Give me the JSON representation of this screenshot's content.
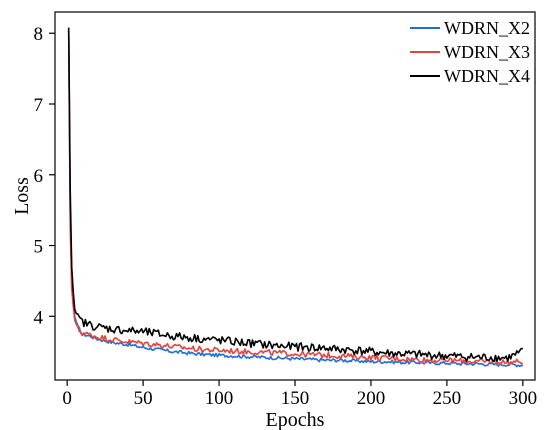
{
  "chart_data": {
    "type": "line",
    "title": "",
    "xlabel": "Epochs",
    "ylabel": "Loss",
    "xlim": [
      -8,
      308
    ],
    "ylim": [
      3.1,
      8.3
    ],
    "xticks": [
      0,
      50,
      100,
      150,
      200,
      250,
      300
    ],
    "yticks": [
      4,
      5,
      6,
      7,
      8
    ],
    "grid": false,
    "legend_position": "top-right",
    "series": [
      {
        "name": "WDRN_X2",
        "color": "#1f6fd6",
        "x": [
          1,
          2,
          3,
          4,
          5,
          7,
          10,
          15,
          20,
          30,
          40,
          50,
          60,
          70,
          80,
          90,
          100,
          110,
          120,
          130,
          140,
          150,
          160,
          170,
          180,
          190,
          200,
          210,
          220,
          230,
          240,
          250,
          260,
          270,
          280,
          290,
          300
        ],
        "y": [
          8.05,
          5.5,
          4.6,
          4.3,
          4.0,
          3.85,
          3.75,
          3.72,
          3.68,
          3.63,
          3.6,
          3.56,
          3.53,
          3.5,
          3.48,
          3.46,
          3.45,
          3.44,
          3.43,
          3.42,
          3.41,
          3.4,
          3.39,
          3.38,
          3.38,
          3.37,
          3.36,
          3.36,
          3.35,
          3.35,
          3.34,
          3.34,
          3.33,
          3.33,
          3.32,
          3.32,
          3.31
        ]
      },
      {
        "name": "WDRN_X3",
        "color": "#e8403a",
        "x": [
          1,
          2,
          3,
          4,
          5,
          7,
          10,
          15,
          20,
          30,
          40,
          50,
          60,
          70,
          80,
          90,
          100,
          110,
          120,
          130,
          140,
          150,
          160,
          170,
          180,
          190,
          200,
          210,
          220,
          230,
          240,
          250,
          260,
          270,
          280,
          290,
          300
        ],
        "y": [
          8.05,
          5.3,
          4.4,
          4.15,
          3.95,
          3.82,
          3.76,
          3.74,
          3.71,
          3.67,
          3.64,
          3.62,
          3.6,
          3.57,
          3.55,
          3.53,
          3.52,
          3.51,
          3.5,
          3.49,
          3.48,
          3.47,
          3.46,
          3.45,
          3.44,
          3.43,
          3.42,
          3.41,
          3.4,
          3.39,
          3.38,
          3.38,
          3.37,
          3.36,
          3.36,
          3.35,
          3.36
        ]
      },
      {
        "name": "WDRN_X4",
        "color": "#000000",
        "x": [
          1,
          2,
          3,
          4,
          5,
          7,
          10,
          15,
          20,
          30,
          40,
          50,
          60,
          70,
          80,
          90,
          100,
          110,
          120,
          130,
          140,
          150,
          160,
          170,
          180,
          190,
          200,
          210,
          220,
          230,
          240,
          250,
          260,
          270,
          280,
          290,
          300
        ],
        "y": [
          8.08,
          5.8,
          4.7,
          4.35,
          4.1,
          3.98,
          3.92,
          3.88,
          3.85,
          3.82,
          3.8,
          3.78,
          3.75,
          3.72,
          3.7,
          3.68,
          3.66,
          3.64,
          3.62,
          3.6,
          3.58,
          3.57,
          3.56,
          3.55,
          3.53,
          3.52,
          3.5,
          3.48,
          3.47,
          3.46,
          3.45,
          3.44,
          3.43,
          3.42,
          3.42,
          3.41,
          3.5
        ]
      }
    ]
  }
}
